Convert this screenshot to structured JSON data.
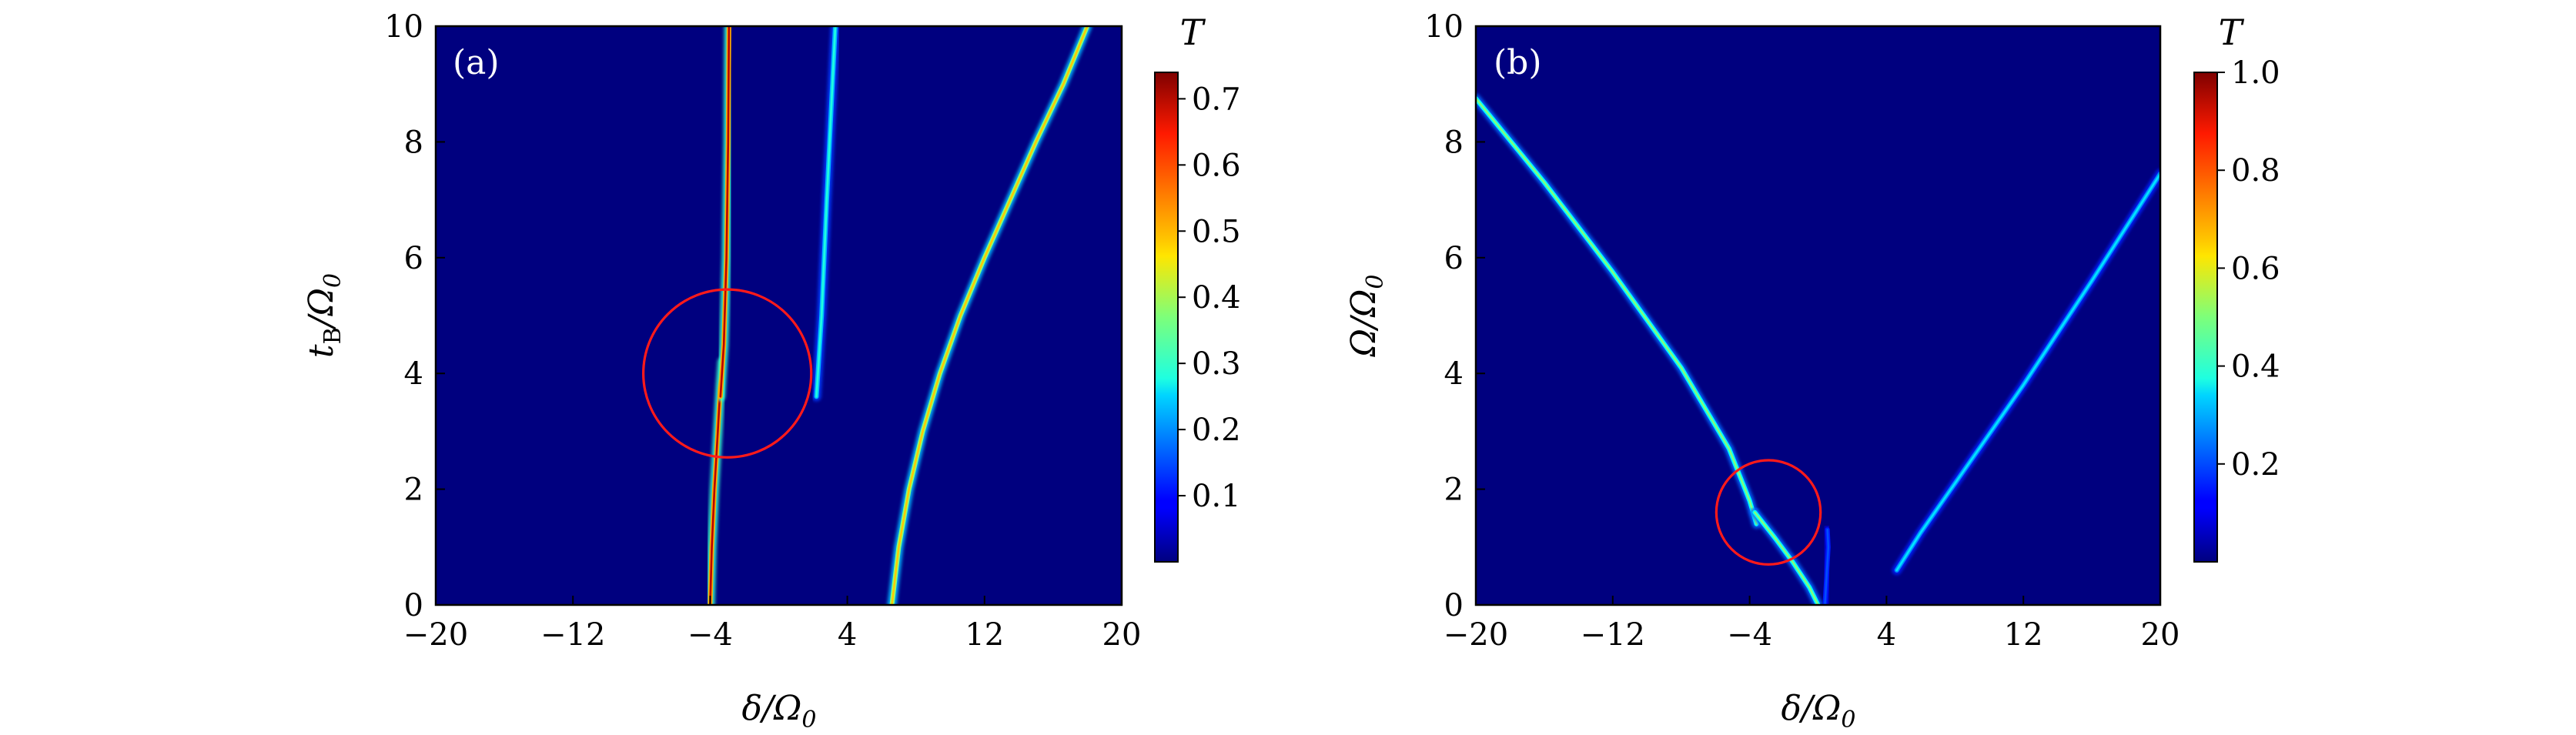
{
  "chart_data": [
    {
      "type": "heatmap",
      "panel_label": "(a)",
      "xlabel": "δ/Ω",
      "xlabel_sub": "0",
      "ylabel_main": "t",
      "ylabel_sub1": "B",
      "ylabel_rest": "/Ω",
      "ylabel_sub2": "0",
      "xlim": [
        -20,
        20
      ],
      "ylim": [
        0,
        10
      ],
      "xticks": [
        -20,
        -12,
        -4,
        4,
        12,
        20
      ],
      "xtick_labels": [
        "−20",
        "−12",
        "−4",
        "4",
        "12",
        "20"
      ],
      "yticks": [
        0,
        2,
        4,
        6,
        8,
        10
      ],
      "ytick_labels": [
        "0",
        "2",
        "4",
        "6",
        "8",
        "10"
      ],
      "colorbar": {
        "title": "T",
        "range": [
          0,
          0.74
        ],
        "ticks": [
          0.1,
          0.2,
          0.3,
          0.4,
          0.5,
          0.6,
          0.7
        ],
        "tick_labels": [
          "0.1",
          "0.2",
          "0.3",
          "0.4",
          "0.5",
          "0.6",
          "0.7"
        ]
      },
      "features": [
        {
          "name": "central resonance line (lower)",
          "peak_T": 0.7,
          "points": [
            [
              -4.0,
              0
            ],
            [
              -3.9,
              1
            ],
            [
              -3.75,
              2
            ],
            [
              -3.55,
              3
            ],
            [
              -3.4,
              3.8
            ],
            [
              -3.3,
              4.2
            ]
          ]
        },
        {
          "name": "central resonance line (upper)",
          "peak_T": 0.7,
          "points": [
            [
              -3.4,
              3.6
            ],
            [
              -3.2,
              4.5
            ],
            [
              -3.05,
              6
            ],
            [
              -2.95,
              8
            ],
            [
              -2.9,
              10
            ]
          ]
        },
        {
          "name": "narrow middle branch",
          "peak_T": 0.3,
          "points": [
            [
              2.2,
              3.6
            ],
            [
              2.5,
              5
            ],
            [
              2.8,
              7
            ],
            [
              3.05,
              8.5
            ],
            [
              3.3,
              10
            ]
          ]
        },
        {
          "name": "right branch",
          "peak_T": 0.5,
          "points": [
            [
              6.6,
              0
            ],
            [
              7.0,
              1
            ],
            [
              7.6,
              2
            ],
            [
              8.4,
              3
            ],
            [
              9.4,
              4
            ],
            [
              10.6,
              5
            ],
            [
              12.0,
              6
            ],
            [
              13.5,
              7
            ],
            [
              15.0,
              8
            ],
            [
              16.6,
              9
            ],
            [
              18.0,
              10
            ]
          ]
        }
      ],
      "highlight_circle": {
        "center": [
          -3.0,
          4.0
        ],
        "radius_y": 1.45
      }
    },
    {
      "type": "heatmap",
      "panel_label": "(b)",
      "xlabel": "δ/Ω",
      "xlabel_sub": "0",
      "ylabel_main": "Ω/Ω",
      "ylabel_sub2": "0",
      "xlim": [
        -20,
        20
      ],
      "ylim": [
        0,
        10
      ],
      "xticks": [
        -20,
        -12,
        -4,
        4,
        12,
        20
      ],
      "xtick_labels": [
        "−20",
        "−12",
        "−4",
        "4",
        "12",
        "20"
      ],
      "yticks": [
        0,
        2,
        4,
        6,
        8,
        10
      ],
      "ytick_labels": [
        "0",
        "2",
        "4",
        "6",
        "8",
        "10"
      ],
      "colorbar": {
        "title": "T",
        "range": [
          0,
          1.0
        ],
        "ticks": [
          0.2,
          0.4,
          0.6,
          0.8,
          1.0
        ],
        "tick_labels": [
          "0.2",
          "0.4",
          "0.6",
          "0.8",
          "1.0"
        ]
      },
      "features": [
        {
          "name": "left descending line",
          "peak_T": 0.5,
          "points": [
            [
              -20,
              8.75
            ],
            [
              -16,
              7.3
            ],
            [
              -12,
              5.75
            ],
            [
              -8,
              4.1
            ],
            [
              -5.2,
              2.7
            ],
            [
              -4.0,
              1.8
            ],
            [
              -3.6,
              1.4
            ]
          ]
        },
        {
          "name": "left line (after gap)",
          "peak_T": 0.5,
          "points": [
            [
              -3.7,
              1.6
            ],
            [
              -2.5,
              1.15
            ],
            [
              -1.5,
              0.75
            ],
            [
              -0.5,
              0.3
            ],
            [
              0,
              0
            ]
          ]
        },
        {
          "name": "small faint branch",
          "peak_T": 0.2,
          "points": [
            [
              0.4,
              0
            ],
            [
              0.5,
              0.5
            ],
            [
              0.6,
              1.0
            ],
            [
              0.55,
              1.3
            ]
          ]
        },
        {
          "name": "right ascending line",
          "peak_T": 0.35,
          "points": [
            [
              4.6,
              0.6
            ],
            [
              6,
              1.25
            ],
            [
              8,
              2.1
            ],
            [
              12,
              3.8
            ],
            [
              16,
              5.6
            ],
            [
              20,
              7.45
            ]
          ]
        }
      ],
      "highlight_circle": {
        "center": [
          -2.9,
          1.6
        ],
        "radius_y": 0.9
      }
    }
  ]
}
